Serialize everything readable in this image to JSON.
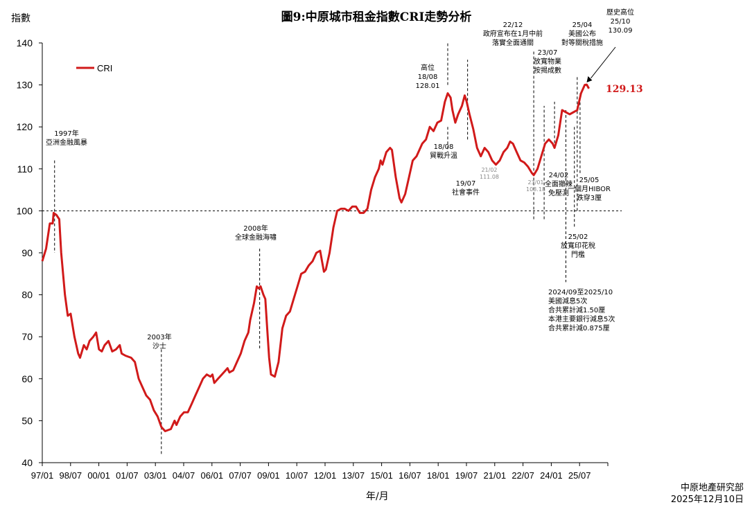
{
  "chart_data": {
    "type": "line",
    "title": "圖9:中原城市租金指數CRI走勢分析",
    "ylabel": "指數",
    "xlabel": "年/月",
    "ylim": [
      40,
      140
    ],
    "yticks": [
      40,
      50,
      60,
      70,
      80,
      90,
      100,
      110,
      120,
      130,
      140
    ],
    "xlim": [
      1997.0,
      2026.92
    ],
    "xticks": [
      "97/01",
      "98/07",
      "00/01",
      "01/07",
      "03/01",
      "04/07",
      "06/01",
      "07/07",
      "09/01",
      "10/07",
      "12/01",
      "13/07",
      "15/01",
      "16/07",
      "18/01",
      "19/07",
      "21/01",
      "22/07",
      "24/01",
      "25/07"
    ],
    "reference_line": 100,
    "legend": {
      "label": "CRI",
      "position": "top-left"
    },
    "last_value_label": "129.13",
    "series": [
      {
        "name": "CRI",
        "color": "#d11a1a",
        "points": [
          [
            1997.0,
            88
          ],
          [
            1997.2,
            91
          ],
          [
            1997.4,
            97
          ],
          [
            1997.55,
            97
          ],
          [
            1997.6,
            99.5
          ],
          [
            1997.75,
            99
          ],
          [
            1997.9,
            98
          ],
          [
            1998.0,
            90
          ],
          [
            1998.2,
            80
          ],
          [
            1998.35,
            75
          ],
          [
            1998.5,
            75.5
          ],
          [
            1998.7,
            70
          ],
          [
            1998.9,
            66
          ],
          [
            1999.0,
            65
          ],
          [
            1999.2,
            68
          ],
          [
            1999.35,
            67
          ],
          [
            1999.5,
            69
          ],
          [
            1999.7,
            70
          ],
          [
            1999.85,
            71
          ],
          [
            2000.0,
            67
          ],
          [
            2000.15,
            66.5
          ],
          [
            2000.3,
            68
          ],
          [
            2000.5,
            69
          ],
          [
            2000.7,
            66.5
          ],
          [
            2000.9,
            67
          ],
          [
            2001.1,
            68
          ],
          [
            2001.2,
            66
          ],
          [
            2001.4,
            65.5
          ],
          [
            2001.7,
            65
          ],
          [
            2001.9,
            64
          ],
          [
            2002.1,
            60
          ],
          [
            2002.3,
            58
          ],
          [
            2002.5,
            56
          ],
          [
            2002.7,
            55
          ],
          [
            2002.9,
            52.5
          ],
          [
            2003.1,
            51
          ],
          [
            2003.3,
            48.5
          ],
          [
            2003.5,
            47.5
          ],
          [
            2003.8,
            48
          ],
          [
            2004.0,
            50
          ],
          [
            2004.1,
            49
          ],
          [
            2004.3,
            51
          ],
          [
            2004.5,
            52
          ],
          [
            2004.7,
            52
          ],
          [
            2004.9,
            54
          ],
          [
            2005.1,
            56
          ],
          [
            2005.3,
            58
          ],
          [
            2005.5,
            60
          ],
          [
            2005.7,
            61
          ],
          [
            2005.9,
            60.5
          ],
          [
            2006.0,
            61
          ],
          [
            2006.1,
            59
          ],
          [
            2006.3,
            60
          ],
          [
            2006.5,
            61
          ],
          [
            2006.7,
            62
          ],
          [
            2006.8,
            62.5
          ],
          [
            2006.9,
            61.5
          ],
          [
            2007.1,
            62
          ],
          [
            2007.3,
            64
          ],
          [
            2007.5,
            66
          ],
          [
            2007.7,
            69
          ],
          [
            2007.9,
            71
          ],
          [
            2008.0,
            74
          ],
          [
            2008.2,
            78
          ],
          [
            2008.35,
            82
          ],
          [
            2008.45,
            81.5
          ],
          [
            2008.55,
            82
          ],
          [
            2008.7,
            80
          ],
          [
            2008.8,
            79
          ],
          [
            2008.9,
            72
          ],
          [
            2009.0,
            65
          ],
          [
            2009.1,
            61
          ],
          [
            2009.3,
            60.5
          ],
          [
            2009.5,
            64
          ],
          [
            2009.7,
            72
          ],
          [
            2009.9,
            75
          ],
          [
            2010.1,
            76
          ],
          [
            2010.3,
            79
          ],
          [
            2010.5,
            82
          ],
          [
            2010.7,
            85
          ],
          [
            2010.9,
            85.5
          ],
          [
            2011.1,
            87
          ],
          [
            2011.3,
            88
          ],
          [
            2011.5,
            90
          ],
          [
            2011.7,
            90.5
          ],
          [
            2011.8,
            88
          ],
          [
            2011.9,
            85.5
          ],
          [
            2012.0,
            86
          ],
          [
            2012.2,
            90
          ],
          [
            2012.4,
            96
          ],
          [
            2012.6,
            100
          ],
          [
            2012.8,
            100.5
          ],
          [
            2013.0,
            100.5
          ],
          [
            2013.2,
            100
          ],
          [
            2013.4,
            101
          ],
          [
            2013.6,
            101
          ],
          [
            2013.8,
            99.5
          ],
          [
            2014.0,
            99.5
          ],
          [
            2014.2,
            100.5
          ],
          [
            2014.4,
            105
          ],
          [
            2014.6,
            108
          ],
          [
            2014.8,
            110
          ],
          [
            2014.9,
            112
          ],
          [
            2015.0,
            111
          ],
          [
            2015.2,
            114
          ],
          [
            2015.4,
            115
          ],
          [
            2015.5,
            114.5
          ],
          [
            2015.7,
            108
          ],
          [
            2015.9,
            103
          ],
          [
            2016.0,
            102
          ],
          [
            2016.2,
            104
          ],
          [
            2016.4,
            108
          ],
          [
            2016.6,
            112
          ],
          [
            2016.8,
            113
          ],
          [
            2016.9,
            114
          ],
          [
            2017.1,
            116
          ],
          [
            2017.3,
            117
          ],
          [
            2017.5,
            120
          ],
          [
            2017.7,
            119
          ],
          [
            2017.9,
            121
          ],
          [
            2018.1,
            121.5
          ],
          [
            2018.3,
            126
          ],
          [
            2018.45,
            128
          ],
          [
            2018.6,
            127
          ],
          [
            2018.7,
            124
          ],
          [
            2018.85,
            121
          ],
          [
            2019.0,
            123
          ],
          [
            2019.2,
            125
          ],
          [
            2019.35,
            127.5
          ],
          [
            2019.45,
            126
          ],
          [
            2019.6,
            123
          ],
          [
            2019.8,
            119.5
          ],
          [
            2020.0,
            115
          ],
          [
            2020.2,
            113
          ],
          [
            2020.4,
            115
          ],
          [
            2020.6,
            114
          ],
          [
            2020.8,
            112
          ],
          [
            2021.0,
            111
          ],
          [
            2021.2,
            112
          ],
          [
            2021.4,
            114
          ],
          [
            2021.6,
            115
          ],
          [
            2021.75,
            116.5
          ],
          [
            2021.9,
            116
          ],
          [
            2022.1,
            114
          ],
          [
            2022.3,
            112
          ],
          [
            2022.5,
            111.5
          ],
          [
            2022.7,
            110.5
          ],
          [
            2022.9,
            109
          ],
          [
            2023.0,
            108.5
          ],
          [
            2023.2,
            110
          ],
          [
            2023.4,
            113
          ],
          [
            2023.6,
            116
          ],
          [
            2023.8,
            117
          ],
          [
            2024.0,
            116
          ],
          [
            2024.1,
            115
          ],
          [
            2024.3,
            118
          ],
          [
            2024.5,
            124
          ],
          [
            2024.7,
            123.5
          ],
          [
            2024.9,
            123
          ],
          [
            2025.1,
            123.5
          ],
          [
            2025.3,
            124
          ],
          [
            2025.5,
            128
          ],
          [
            2025.7,
            130
          ],
          [
            2025.8,
            130.09
          ],
          [
            2025.92,
            129.13
          ]
        ]
      }
    ],
    "annotations": [
      {
        "x": 1997.65,
        "lines": [
          "1997年",
          "亞洲金融風暴"
        ],
        "line_from": 112,
        "line_to": 90
      },
      {
        "x": 2003.3,
        "lines": [
          "2003年",
          "沙士"
        ],
        "line_from": 67,
        "line_to": 42
      },
      {
        "x": 2008.5,
        "lines": [
          "2008年",
          "全球金融海嘯"
        ],
        "line_from": 91,
        "line_to": 67
      },
      {
        "x": 2018.45,
        "lines": [
          "高位",
          "18/08",
          "128.01"
        ],
        "line_from": 130,
        "line_to": 140
      },
      {
        "x": 2018.45,
        "lines": [
          "18/08",
          "貿戰升溫"
        ],
        "line_from": 120,
        "line_to": 114
      },
      {
        "x": 2019.5,
        "lines": [
          "19/07",
          "社會事件"
        ],
        "line_from": 117,
        "line_to": 136
      },
      {
        "x": 2020.95,
        "lines": [
          "21/02",
          "111.08"
        ],
        "small": true
      },
      {
        "x": 2023.05,
        "lines": [
          "23/01",
          "108.18"
        ],
        "small": true
      },
      {
        "x": 2023.0,
        "lines": [
          "22/12",
          "政府宣布在1月中前",
          "落實全面通關"
        ],
        "line_from": 98,
        "line_to": 138
      },
      {
        "x": 2023.55,
        "lines": [
          "23/07",
          "放寬物業",
          "按揭成數"
        ],
        "line_from": 98,
        "line_to": 125
      },
      {
        "x": 2024.1,
        "lines": [
          "24/02",
          "全面撤辣",
          "免壓測"
        ],
        "line_from": 115,
        "line_to": 126
      },
      {
        "x": 2024.7,
        "lines": [
          "2024/09至2025/10",
          "美國減息5次",
          "合共累計減1.50厘",
          "本港主要銀行減息5次",
          "合共累計減0.875厘"
        ],
        "line_from": 124,
        "line_to": 83
      },
      {
        "x": 2025.15,
        "lines": [
          "25/02",
          "放寬印花稅",
          "門檻"
        ],
        "line_from": 120,
        "line_to": 96
      },
      {
        "x": 2025.3,
        "lines": [
          "25/04",
          "美國公布",
          "對等關稅措施"
        ],
        "line_from": 100,
        "line_to": 132
      },
      {
        "x": 2025.45,
        "lines": [
          "25/05",
          "一個月HIBOR",
          "跌穿3厘"
        ],
        "line_from": 109,
        "line_to": 128
      },
      {
        "x": 2025.8,
        "lines": [
          "歷史高位",
          "25/10",
          "130.09"
        ],
        "arrow": true
      }
    ]
  },
  "footer": {
    "source": "中原地產研究部",
    "date": "2025年12月10日"
  }
}
